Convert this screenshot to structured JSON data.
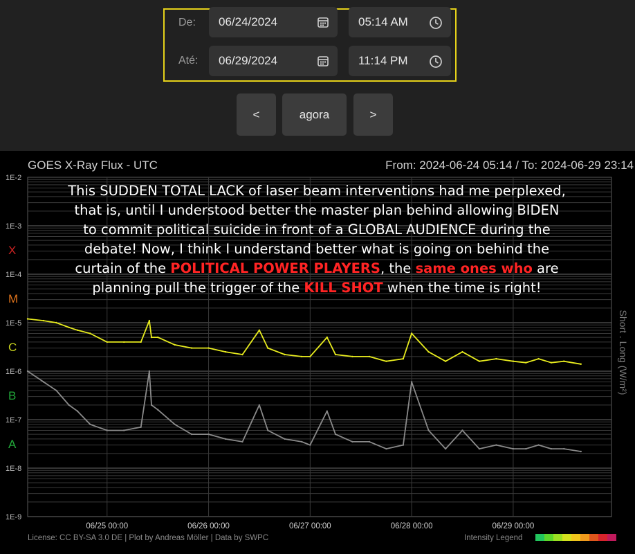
{
  "controls": {
    "from_label": "De:",
    "from_date": "06/24/2024",
    "from_time": "05:14 AM",
    "to_label": "Até:",
    "to_date": "06/29/2024",
    "to_time": "11:14 PM",
    "prev_label": "<",
    "now_label": "agora",
    "next_label": ">",
    "accent_color": "#e6d21a"
  },
  "chart_data": {
    "type": "line",
    "title": "GOES X-Ray Flux - UTC",
    "range_text": "From: 2024-06-24 05:14  /  To: 2024-06-29 23:14",
    "ylabel": "Short . Long (W/m²)",
    "y_scale": "log",
    "ylim": [
      1e-09,
      0.01
    ],
    "y_ticks": [
      "1E-2",
      "1E-3",
      "1E-4",
      "1E-5",
      "1E-6",
      "1E-7",
      "1E-8",
      "1E-9"
    ],
    "flare_classes": [
      {
        "label": "X",
        "color": "#cc2222"
      },
      {
        "label": "M",
        "color": "#e0731c"
      },
      {
        "label": "C",
        "color": "#c8d21e"
      },
      {
        "label": "B",
        "color": "#22a83a"
      },
      {
        "label": "A",
        "color": "#22a83a"
      }
    ],
    "x_ticks": [
      "06/25 00:00",
      "06/26 00:00",
      "06/27 00:00",
      "06/28 00:00",
      "06/29 00:00"
    ],
    "xlim": [
      "2024-06-24 05:14",
      "2024-06-29 23:14"
    ],
    "grid": true,
    "series": [
      {
        "name": "Long",
        "color": "#e8ec1e",
        "x": [
          "06/24 05:14",
          "06/24 09:00",
          "06/24 12:00",
          "06/24 15:00",
          "06/24 17:00",
          "06/24 20:00",
          "06/25 00:00",
          "06/25 04:00",
          "06/25 08:00",
          "06/25 10:00",
          "06/25 10:30",
          "06/25 12:00",
          "06/25 16:00",
          "06/25 20:00",
          "06/26 00:00",
          "06/26 04:00",
          "06/26 08:00",
          "06/26 12:00",
          "06/26 14:00",
          "06/26 18:00",
          "06/26 22:00",
          "06/27 00:00",
          "06/27 04:00",
          "06/27 06:00",
          "06/27 10:00",
          "06/27 14:00",
          "06/27 18:00",
          "06/27 22:00",
          "06/28 00:00",
          "06/28 04:00",
          "06/28 08:00",
          "06/28 12:00",
          "06/28 16:00",
          "06/28 20:00",
          "06/29 00:00",
          "06/29 03:00",
          "06/29 06:00",
          "06/29 09:00",
          "06/29 12:00",
          "06/29 16:00"
        ],
        "values": [
          1.2e-05,
          1.1e-05,
          1e-05,
          8e-06,
          7e-06,
          6e-06,
          4e-06,
          4e-06,
          4e-06,
          1.1e-05,
          5e-06,
          5e-06,
          3.5e-06,
          3e-06,
          3e-06,
          2.5e-06,
          2.2e-06,
          7e-06,
          3e-06,
          2.2e-06,
          2e-06,
          2e-06,
          5e-06,
          2.2e-06,
          2e-06,
          2e-06,
          1.6e-06,
          1.8e-06,
          6e-06,
          2.5e-06,
          1.6e-06,
          2.5e-06,
          1.6e-06,
          1.8e-06,
          1.6e-06,
          1.5e-06,
          1.8e-06,
          1.5e-06,
          1.6e-06,
          1.4e-06
        ]
      },
      {
        "name": "Short",
        "color": "#8a8a8a",
        "x": [
          "06/24 05:14",
          "06/24 09:00",
          "06/24 12:00",
          "06/24 15:00",
          "06/24 17:00",
          "06/24 20:00",
          "06/25 00:00",
          "06/25 04:00",
          "06/25 08:00",
          "06/25 10:00",
          "06/25 10:30",
          "06/25 12:00",
          "06/25 16:00",
          "06/25 20:00",
          "06/26 00:00",
          "06/26 04:00",
          "06/26 08:00",
          "06/26 12:00",
          "06/26 14:00",
          "06/26 18:00",
          "06/26 22:00",
          "06/27 00:00",
          "06/27 04:00",
          "06/27 06:00",
          "06/27 10:00",
          "06/27 14:00",
          "06/27 18:00",
          "06/27 22:00",
          "06/28 00:00",
          "06/28 04:00",
          "06/28 08:00",
          "06/28 12:00",
          "06/28 16:00",
          "06/28 20:00",
          "06/29 00:00",
          "06/29 03:00",
          "06/29 06:00",
          "06/29 09:00",
          "06/29 12:00",
          "06/29 16:00"
        ],
        "values": [
          1e-06,
          6e-07,
          4e-07,
          2e-07,
          1.5e-07,
          8e-08,
          6e-08,
          6e-08,
          7e-08,
          1e-06,
          2e-07,
          1.6e-07,
          8e-08,
          5e-08,
          5e-08,
          4e-08,
          3.5e-08,
          2e-07,
          6e-08,
          4e-08,
          3.5e-08,
          3e-08,
          1.5e-07,
          5e-08,
          3.5e-08,
          3.5e-08,
          2.5e-08,
          3e-08,
          6e-07,
          6e-08,
          2.5e-08,
          6e-08,
          2.5e-08,
          3e-08,
          2.5e-08,
          2.5e-08,
          3e-08,
          2.5e-08,
          2.5e-08,
          2.2e-08
        ]
      }
    ],
    "footer_left": "License: CC BY-SA 3.0 DE | Plot by Andreas Möller | Data by SWPC",
    "footer_right": "Intensity Legend",
    "intensity_colors": [
      "#22c55e",
      "#5cd62a",
      "#9be022",
      "#d4e21e",
      "#f0c51c",
      "#f09a1c",
      "#e0561c",
      "#d8242c",
      "#c01a5c"
    ]
  },
  "overlay_text": {
    "line1": "This SUDDEN TOTAL LACK of laser beam interventions had me perplexed,",
    "line2": "that is, until I understood better the master plan behind allowing BIDEN",
    "line3": "to commit political suicide in front of a GLOBAL AUDIENCE during the",
    "line4": "debate!  Now, I think I understand better what is going on behind the",
    "line5a": "curtain of the ",
    "line5b": "POLITICAL POWER PLAYERS",
    "line5c": ", the ",
    "line5d": "same ones who",
    "line5e": " are",
    "line6a": "planning pull the trigger of the ",
    "line6b": "KILL SHOT",
    "line6c": " when the time is right!",
    "highlight_color": "#ff2424"
  }
}
